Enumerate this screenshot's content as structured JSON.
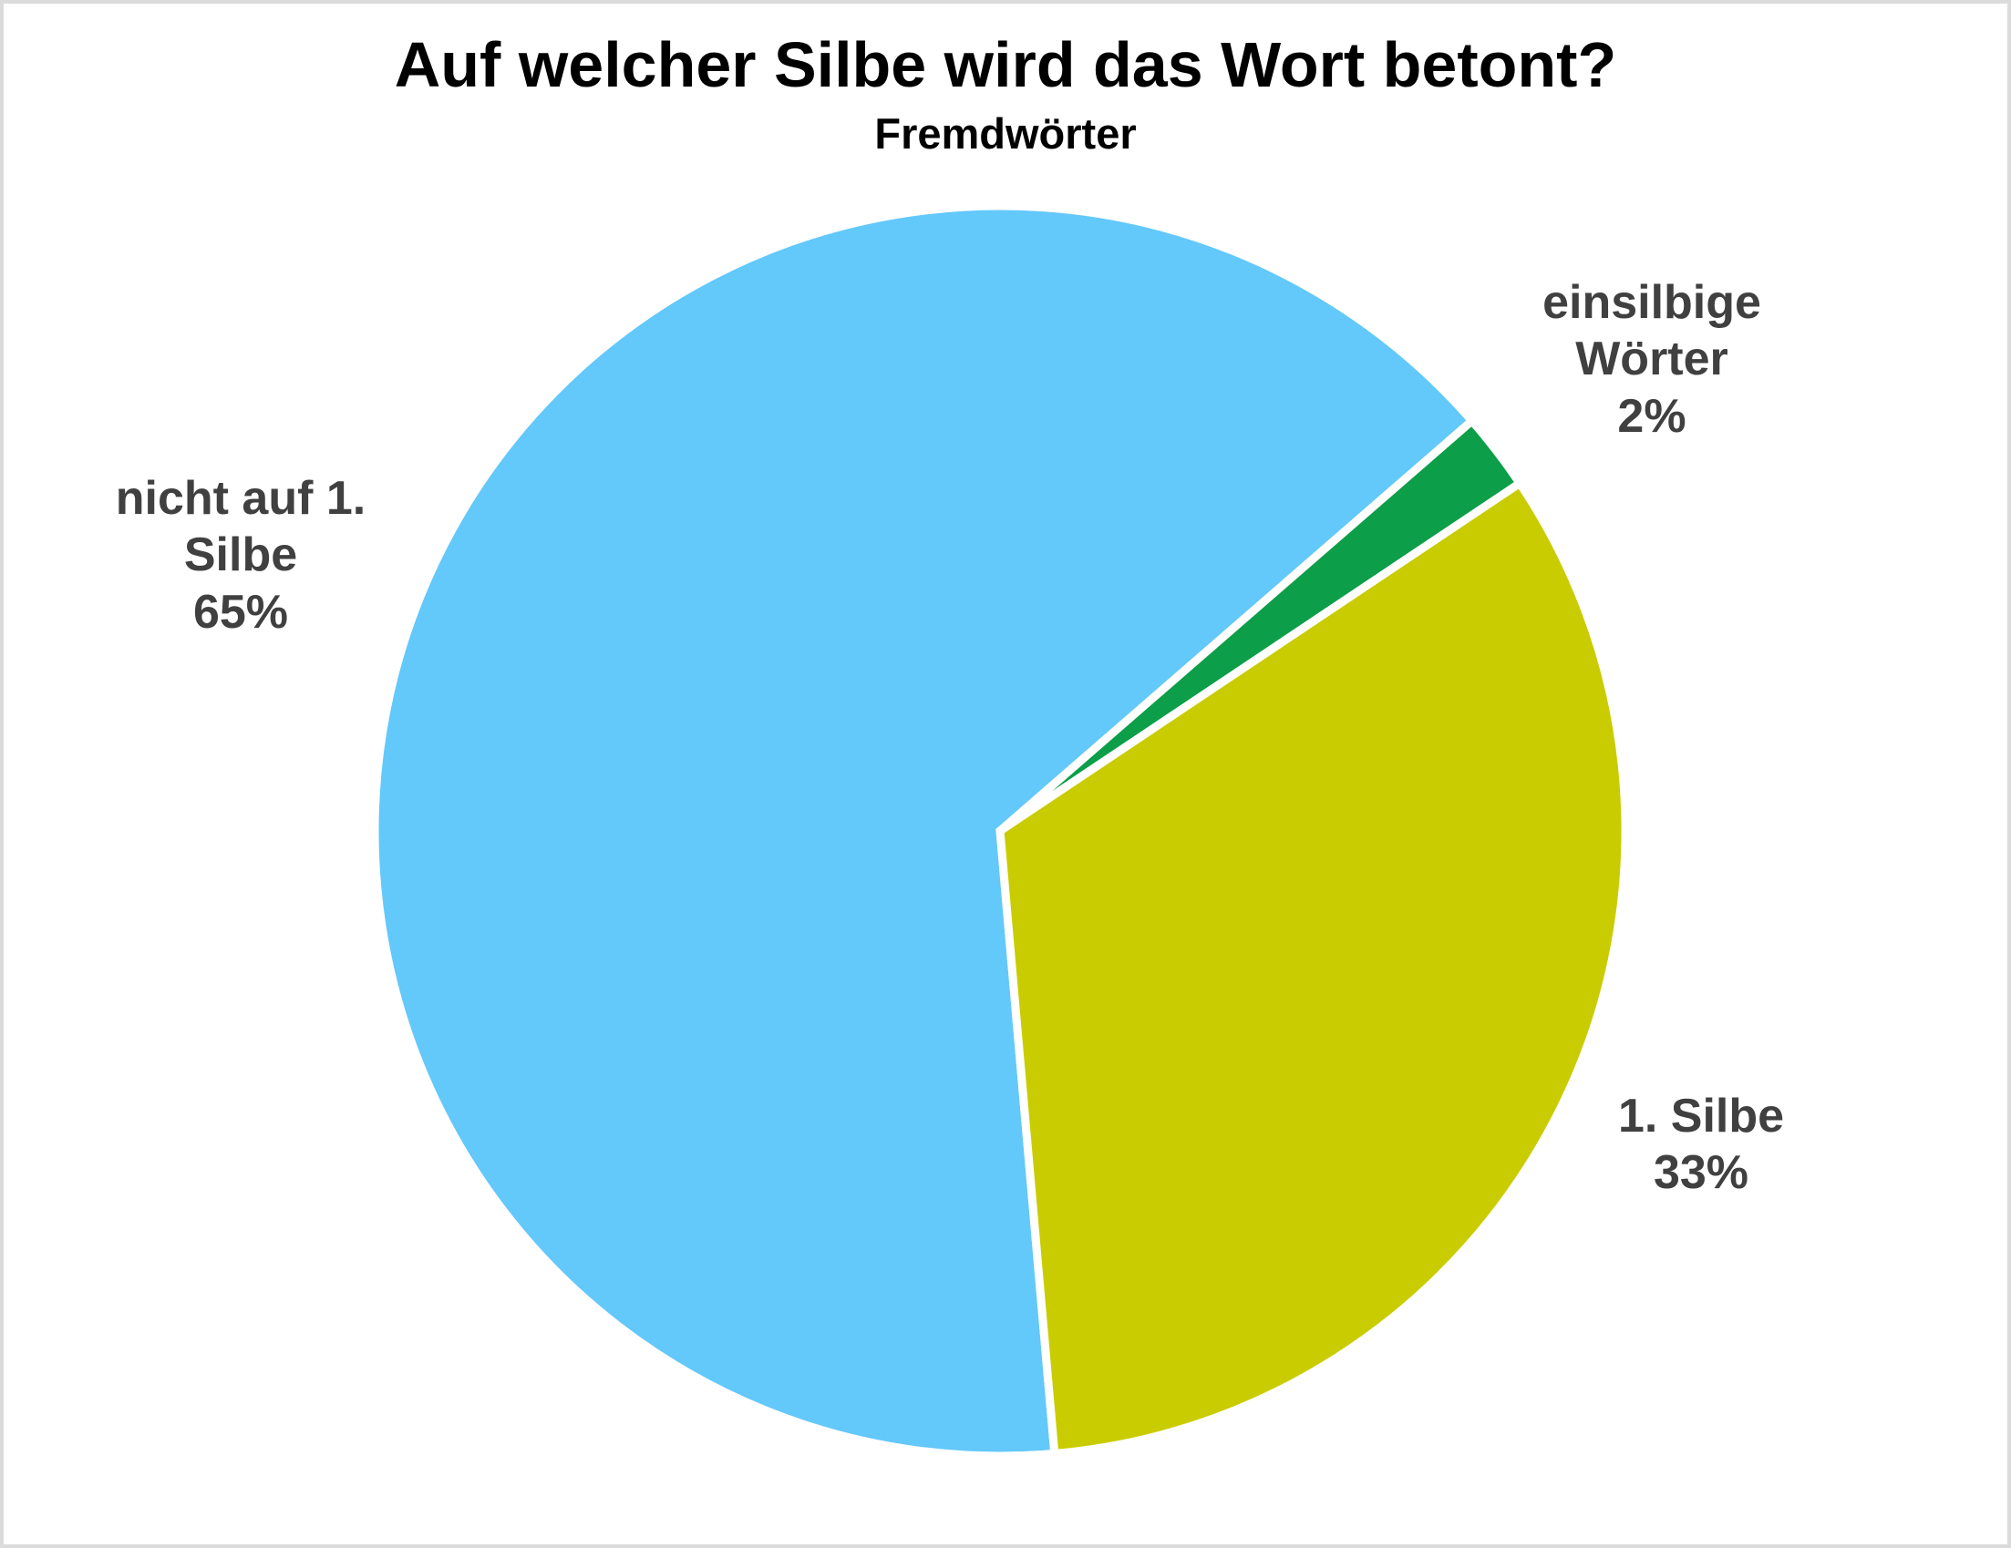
{
  "frame": {
    "background_color": "#ffffff",
    "border_color": "#dbdbdb"
  },
  "header": {
    "title": "Auf welcher Silbe wird das Wort betont?",
    "subtitle": "Fremdwörter",
    "title_color": "#000000"
  },
  "chart_data": {
    "type": "pie",
    "title": "Auf welcher Silbe wird das Wort betont?",
    "subtitle": "Fremdwörter",
    "start_angle_deg": 175,
    "clockwise": true,
    "slice_border_color": "#ffffff",
    "label_color": "#404040",
    "slices": [
      {
        "label": "nicht auf 1. Silbe",
        "pct": 65,
        "color": "#63c8fa"
      },
      {
        "label": "einsilbige Wörter",
        "pct": 2,
        "color": "#0c9e48"
      },
      {
        "label": "1. Silbe",
        "pct": 33,
        "color": "#c9cc00"
      }
    ],
    "labels": {
      "left": {
        "lines": [
          "nicht auf 1.",
          "Silbe",
          "65%"
        ]
      },
      "top_right": {
        "lines": [
          "einsilbige",
          "Wörter",
          "2%"
        ]
      },
      "bottom_right": {
        "lines": [
          "1. Silbe",
          "33%"
        ]
      }
    }
  }
}
